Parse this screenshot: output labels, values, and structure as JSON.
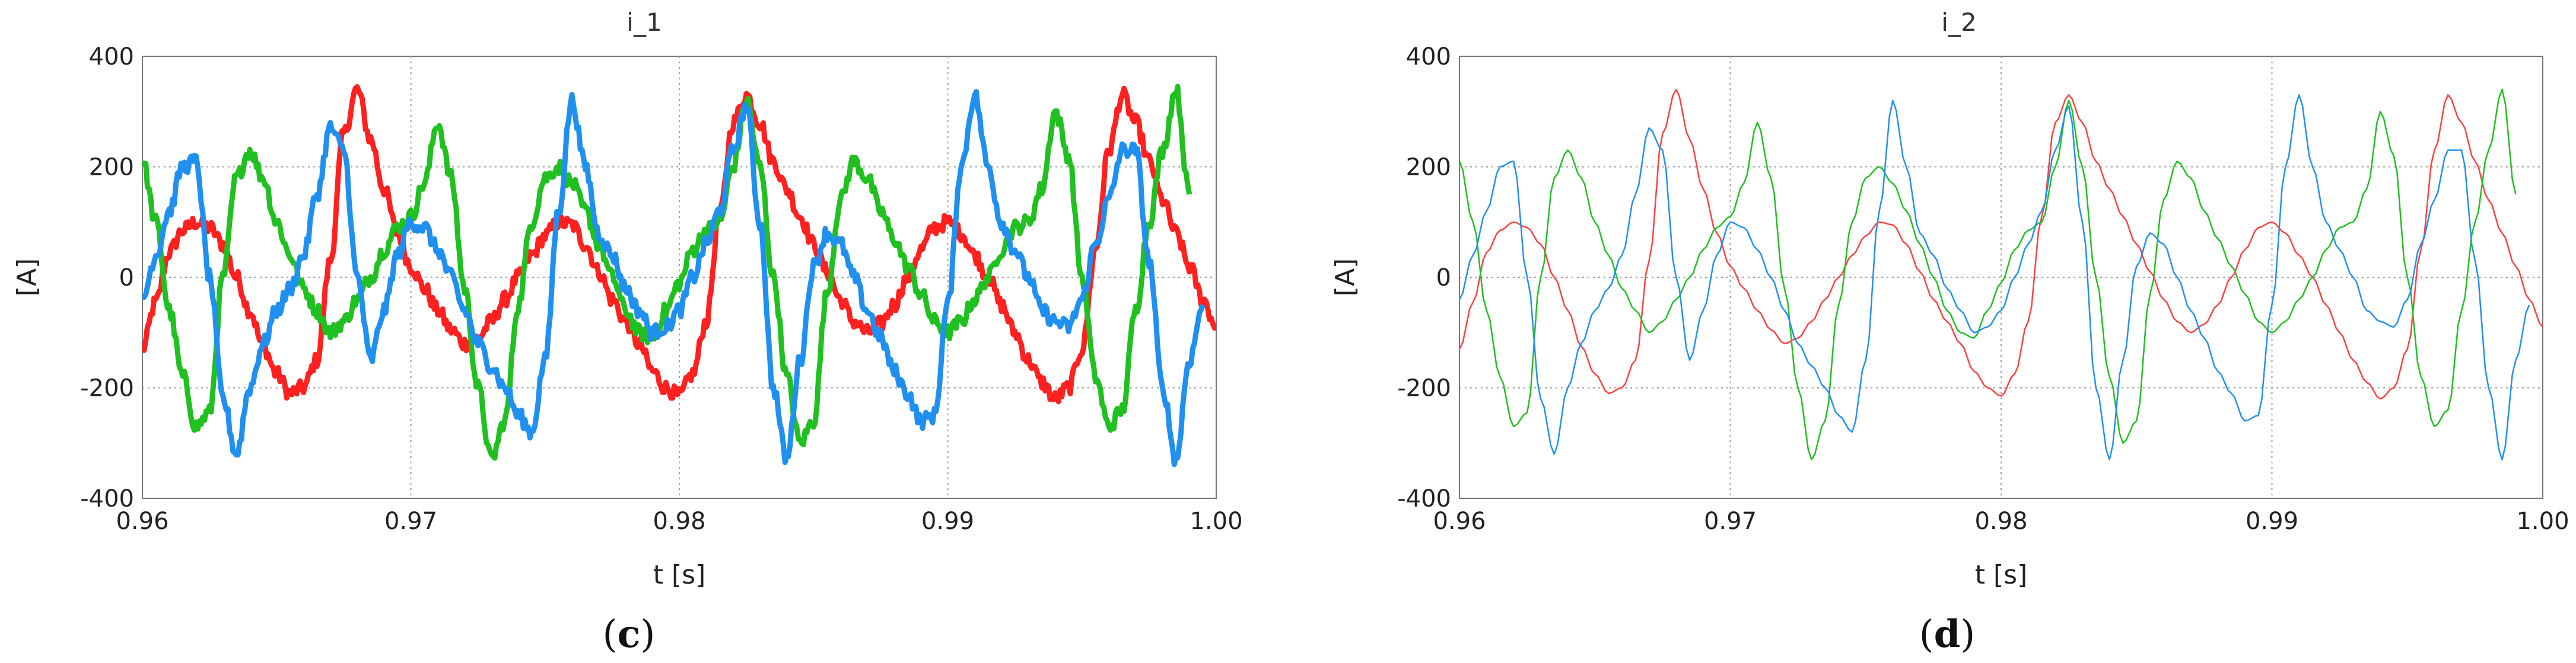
{
  "figure": {
    "panels": [
      {
        "caption_letter": "c",
        "caption_prefix": "(",
        "caption_suffix": ")"
      },
      {
        "caption_letter": "d",
        "caption_prefix": "(",
        "caption_suffix": ")"
      }
    ]
  },
  "chart_data": [
    {
      "type": "line",
      "title": "i_1",
      "xlabel": "t [s]",
      "ylabel": "[A]",
      "xlim": [
        0.96,
        1.0
      ],
      "ylim": [
        -400,
        400
      ],
      "xticks": [
        "0.96",
        "0.97",
        "0.98",
        "0.99",
        "1.00"
      ],
      "yticks": [
        "400",
        "200",
        "0",
        "-200",
        "-400"
      ],
      "grid": true,
      "waveform": "noisy",
      "period_s": 0.01,
      "series": [
        {
          "color": "#ff2020",
          "x_start": 0.96,
          "x_step": 0.0005,
          "values": [
            -130,
            -45,
            45,
            85,
            100,
            90,
            60,
            0,
            -60,
            -125,
            -175,
            -210,
            -200,
            -150,
            30,
            260,
            340,
            250,
            160,
            80,
            20,
            -20,
            -60,
            -95,
            -120,
            -110,
            -80,
            -40,
            0,
            40,
            75,
            100,
            95,
            60,
            10,
            -40,
            -80,
            -120,
            -170,
            -200,
            -215,
            -175,
            -80,
            110,
            280,
            330,
            280,
            210,
            160,
            110,
            60,
            10,
            -40,
            -80,
            -100,
            -85,
            -50,
            0,
            50,
            90,
            100,
            80,
            40,
            0,
            -50,
            -100,
            -150,
            -190,
            -220,
            -200,
            -130,
            50,
            230,
            330,
            280,
            210,
            140,
            80,
            20,
            -40,
            -90
          ]
        },
        {
          "color": "#20c020",
          "x_start": 0.96,
          "x_step": 0.0005,
          "values": [
            210,
            100,
            -60,
            -180,
            -270,
            -245,
            0,
            180,
            230,
            180,
            100,
            40,
            -20,
            -60,
            -100,
            -80,
            -40,
            0,
            50,
            90,
            110,
            170,
            280,
            180,
            -20,
            -200,
            -330,
            -260,
            -50,
            100,
            180,
            200,
            170,
            120,
            60,
            0,
            -60,
            -100,
            -110,
            -60,
            -10,
            50,
            85,
            100,
            200,
            320,
            200,
            0,
            -180,
            -300,
            -260,
            -30,
            140,
            210,
            180,
            120,
            70,
            20,
            -30,
            -80,
            -100,
            -80,
            -40,
            0,
            50,
            90,
            100,
            160,
            300,
            220,
            0,
            -180,
            -270,
            -240,
            -60,
            100,
            230,
            340,
            150
          ]
        },
        {
          "color": "#2090f0",
          "x_start": 0.96,
          "x_step": 0.0005,
          "values": [
            -40,
            40,
            120,
            200,
            210,
            0,
            -220,
            -320,
            -200,
            -120,
            -60,
            -20,
            40,
            150,
            270,
            230,
            0,
            -150,
            -60,
            40,
            100,
            90,
            50,
            0,
            -60,
            -120,
            -160,
            -200,
            -250,
            -280,
            -150,
            120,
            320,
            200,
            80,
            40,
            -20,
            -60,
            -100,
            -90,
            -60,
            0,
            60,
            120,
            230,
            310,
            100,
            -200,
            -330,
            -150,
            20,
            80,
            60,
            0,
            -60,
            -110,
            -170,
            -210,
            -260,
            -250,
            -50,
            200,
            330,
            200,
            100,
            50,
            0,
            -60,
            -80,
            -90,
            -40,
            60,
            140,
            230,
            230,
            30,
            -200,
            -330,
            -150,
            -50
          ]
        }
      ]
    },
    {
      "type": "line",
      "title": "i_2",
      "xlabel": "t [s]",
      "ylabel": "[A]",
      "xlim": [
        0.96,
        1.0
      ],
      "ylim": [
        -400,
        400
      ],
      "xticks": [
        "0.96",
        "0.97",
        "0.98",
        "0.99",
        "1.00"
      ],
      "yticks": [
        "400",
        "200",
        "0",
        "-200",
        "-400"
      ],
      "grid": true,
      "waveform": "smooth",
      "period_s": 0.01,
      "series": [
        {
          "color": "#ff4040",
          "x_start": 0.96,
          "x_step": 0.0005,
          "values": [
            -130,
            -45,
            45,
            85,
            100,
            90,
            60,
            0,
            -60,
            -125,
            -175,
            -210,
            -200,
            -150,
            30,
            260,
            340,
            250,
            160,
            80,
            20,
            -20,
            -60,
            -95,
            -120,
            -110,
            -80,
            -40,
            0,
            40,
            75,
            100,
            95,
            60,
            10,
            -40,
            -80,
            -120,
            -170,
            -200,
            -215,
            -175,
            -80,
            110,
            280,
            330,
            280,
            210,
            160,
            110,
            60,
            10,
            -40,
            -80,
            -100,
            -85,
            -50,
            0,
            50,
            90,
            100,
            80,
            40,
            0,
            -50,
            -100,
            -150,
            -190,
            -220,
            -200,
            -130,
            50,
            230,
            330,
            280,
            210,
            140,
            80,
            20,
            -40,
            -90
          ]
        },
        {
          "color": "#20c020",
          "x_start": 0.96,
          "x_step": 0.0005,
          "values": [
            210,
            100,
            -60,
            -180,
            -270,
            -245,
            0,
            180,
            230,
            180,
            100,
            40,
            -20,
            -60,
            -100,
            -80,
            -40,
            0,
            50,
            90,
            110,
            170,
            280,
            180,
            -20,
            -200,
            -330,
            -260,
            -50,
            100,
            180,
            200,
            170,
            120,
            60,
            0,
            -60,
            -100,
            -110,
            -60,
            -10,
            50,
            85,
            100,
            200,
            320,
            200,
            0,
            -180,
            -300,
            -260,
            -30,
            140,
            210,
            180,
            120,
            70,
            20,
            -30,
            -80,
            -100,
            -80,
            -40,
            0,
            50,
            90,
            100,
            160,
            300,
            220,
            0,
            -180,
            -270,
            -240,
            -60,
            100,
            230,
            340,
            150
          ]
        },
        {
          "color": "#2090f0",
          "x_start": 0.96,
          "x_step": 0.0005,
          "values": [
            -40,
            40,
            120,
            200,
            210,
            0,
            -220,
            -320,
            -200,
            -120,
            -60,
            -20,
            40,
            150,
            270,
            230,
            0,
            -150,
            -60,
            40,
            100,
            90,
            50,
            0,
            -60,
            -120,
            -160,
            -200,
            -250,
            -280,
            -150,
            120,
            320,
            200,
            80,
            40,
            -20,
            -60,
            -100,
            -90,
            -60,
            0,
            60,
            120,
            230,
            310,
            100,
            -200,
            -330,
            -150,
            20,
            80,
            60,
            0,
            -60,
            -110,
            -170,
            -210,
            -260,
            -250,
            -50,
            200,
            330,
            200,
            100,
            50,
            0,
            -60,
            -80,
            -90,
            -40,
            60,
            140,
            230,
            230,
            30,
            -200,
            -330,
            -150,
            -50
          ]
        }
      ]
    }
  ]
}
